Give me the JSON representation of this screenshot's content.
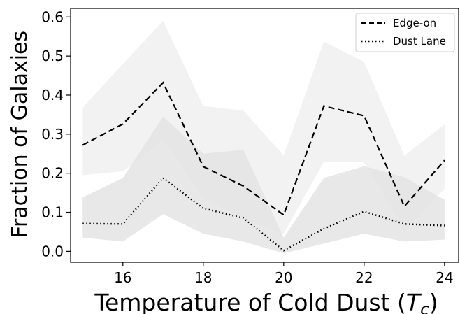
{
  "chart_data": {
    "type": "line",
    "title": "",
    "xlabel": "Temperature of Cold Dust (",
    "xlabel_symbol": "T",
    "xlabel_subscript": "c",
    "xlabel_close": ")",
    "ylabel": "Fraction of Galaxies",
    "xlim": [
      14.7,
      24.35
    ],
    "ylim": [
      -0.028,
      0.622
    ],
    "xticks": [
      16,
      18,
      20,
      22,
      24
    ],
    "xtick_labels": [
      "16",
      "18",
      "20",
      "22",
      "24"
    ],
    "yticks": [
      0.0,
      0.1,
      0.2,
      0.3,
      0.4,
      0.5,
      0.6
    ],
    "ytick_labels": [
      "0.0",
      "0.1",
      "0.2",
      "0.3",
      "0.4",
      "0.5",
      "0.6"
    ],
    "grid": false,
    "legend_position": "top-right",
    "x": [
      15,
      16,
      17,
      18,
      19,
      20,
      21,
      22,
      23,
      24
    ],
    "series": [
      {
        "name": "Edge-on",
        "line_style": "dashed",
        "color": "#000000",
        "band_color": "#f2f2f2",
        "values": [
          0.272,
          0.326,
          0.432,
          0.217,
          0.167,
          0.093,
          0.372,
          0.347,
          0.115,
          0.233
        ],
        "lower": [
          0.195,
          0.205,
          0.285,
          0.135,
          0.085,
          0.045,
          0.23,
          0.228,
          0.055,
          0.16
        ],
        "upper": [
          0.368,
          0.48,
          0.59,
          0.372,
          0.36,
          0.245,
          0.537,
          0.485,
          0.245,
          0.325
        ]
      },
      {
        "name": "Dust Lane",
        "line_style": "dotted",
        "color": "#000000",
        "band_color": "#e4e4e4",
        "values": [
          0.071,
          0.07,
          0.188,
          0.11,
          0.085,
          0.002,
          0.058,
          0.102,
          0.07,
          0.066
        ],
        "lower": [
          0.035,
          0.025,
          0.095,
          0.045,
          0.025,
          -0.005,
          0.02,
          0.045,
          0.025,
          0.03
        ],
        "upper": [
          0.138,
          0.188,
          0.345,
          0.25,
          0.26,
          0.035,
          0.188,
          0.218,
          0.19,
          0.132
        ]
      }
    ]
  }
}
